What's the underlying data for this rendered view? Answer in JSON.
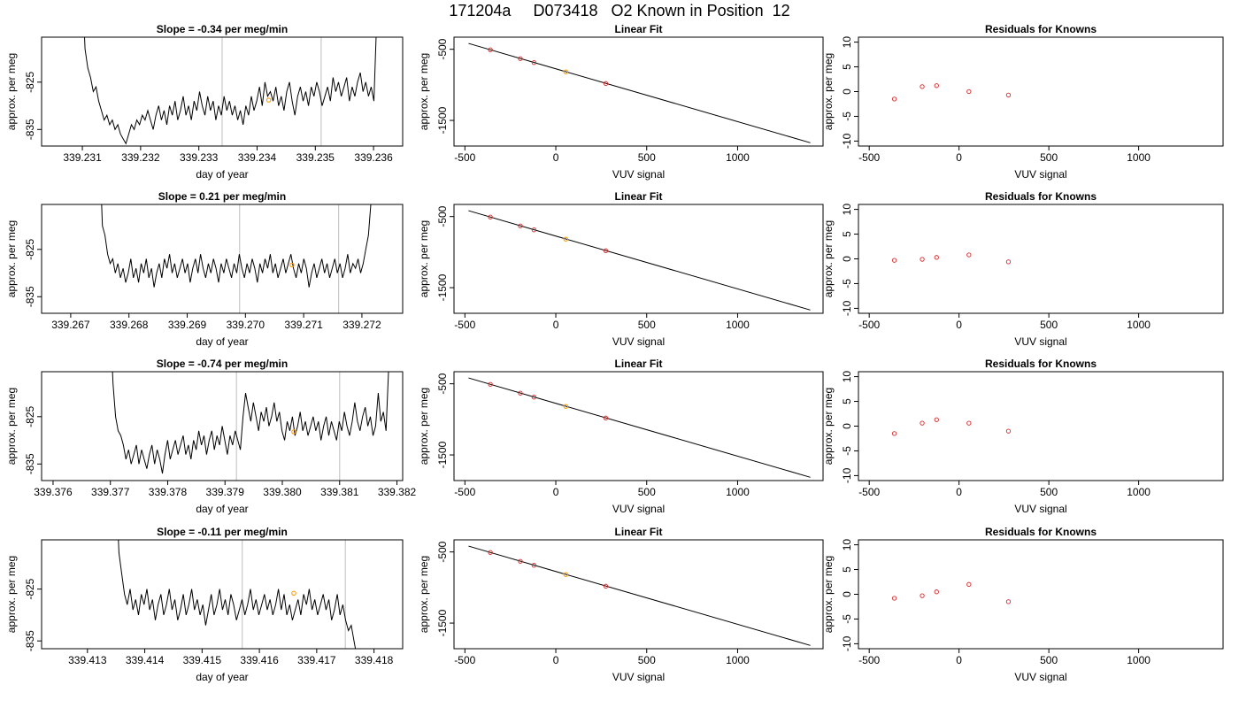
{
  "figure": {
    "title": "171204a     D073418   O2 Known in Position  12",
    "colors": {
      "trace": "#000000",
      "vline": "#c8c8c8",
      "known_point": "#d62728",
      "sample_point": "#ff9900"
    }
  },
  "chart_data": [
    {
      "type": "line",
      "row": 0,
      "panel": "time",
      "title": "Slope =  -0.34  per meg/min",
      "xlabel": "day of year",
      "ylabel": "approx. per meg",
      "xlim": [
        339.2303,
        339.2365
      ],
      "ylim": [
        -838.5,
        -815.5
      ],
      "xticks": [
        "339.231",
        "339.232",
        "339.233",
        "339.234",
        "339.235",
        "339.236"
      ],
      "xtick_values": [
        339.231,
        339.232,
        339.233,
        339.234,
        339.235,
        339.236
      ],
      "yticks": [
        "-825",
        "-835"
      ],
      "ytick_values": [
        -825,
        -835
      ],
      "vlines": [
        339.2334,
        339.2351
      ],
      "trace_x_start": 339.231,
      "trace_x_end": 339.2361,
      "trace_y": [
        -805,
        -818,
        -822,
        -824,
        -827,
        -826,
        -829,
        -831,
        -833,
        -832,
        -834,
        -833,
        -835,
        -834,
        -836,
        -837,
        -838,
        -836,
        -834,
        -835,
        -833,
        -834,
        -832,
        -833,
        -831,
        -833,
        -835,
        -832,
        -830,
        -833,
        -831,
        -834,
        -830,
        -832,
        -829,
        -833,
        -831,
        -828,
        -832,
        -830,
        -833,
        -829,
        -831,
        -827,
        -830,
        -832,
        -828,
        -831,
        -829,
        -833,
        -830,
        -832,
        -828,
        -831,
        -829,
        -832,
        -830,
        -833,
        -831,
        -834,
        -830,
        -832,
        -828,
        -831,
        -829,
        -826,
        -830,
        -825,
        -828,
        -827,
        -829,
        -826,
        -830,
        -828,
        -831,
        -827,
        -825,
        -829,
        -832,
        -828,
        -826,
        -829,
        -827,
        -830,
        -826,
        -828,
        -825,
        -827,
        -830,
        -828,
        -826,
        -829,
        -824,
        -827,
        -825,
        -828,
        -826,
        -824,
        -829,
        -826,
        -828,
        -825,
        -823,
        -827,
        -825,
        -828,
        -826,
        -829,
        -812,
        -805
      ],
      "sample_points": [
        {
          "x": 339.2342,
          "y": -828.8
        }
      ]
    },
    {
      "type": "scatter",
      "row": 0,
      "panel": "fit",
      "title": "Linear Fit",
      "xlabel": "VUV signal",
      "ylabel": "approx. per meg",
      "xlim": [
        -560,
        1470
      ],
      "ylim": [
        -1860,
        -330
      ],
      "xticks": [
        "-500",
        "0",
        "500",
        "1000"
      ],
      "xtick_values": [
        -500,
        0,
        500,
        1000
      ],
      "yticks": [
        "-500",
        "-1500"
      ],
      "ytick_values": [
        -500,
        -1500
      ],
      "fit_line": {
        "x": [
          -480,
          1400
        ],
        "y": [
          -418,
          -1814
        ]
      },
      "known_points": [
        {
          "x": -360,
          "y": -508
        },
        {
          "x": -195,
          "y": -632
        },
        {
          "x": -120,
          "y": -687
        },
        {
          "x": 275,
          "y": -981
        }
      ],
      "sample_points": [
        {
          "x": 55,
          "y": -818
        }
      ]
    },
    {
      "type": "scatter",
      "row": 0,
      "panel": "resid",
      "title": "Residuals for Knowns",
      "xlabel": "VUV signal",
      "ylabel": "approx. per meg",
      "xlim": [
        -560,
        1470
      ],
      "ylim": [
        -11,
        11
      ],
      "xticks": [
        "-500",
        "0",
        "500",
        "1000"
      ],
      "xtick_values": [
        -500,
        0,
        500,
        1000
      ],
      "yticks": [
        "-10",
        "-5",
        "0",
        "5",
        "10"
      ],
      "ytick_values": [
        -10,
        -5,
        0,
        5,
        10
      ],
      "known_points": [
        {
          "x": -360,
          "y": -1.5
        },
        {
          "x": -205,
          "y": 1.0
        },
        {
          "x": -125,
          "y": 1.2
        },
        {
          "x": 55,
          "y": 0.0
        },
        {
          "x": 275,
          "y": -0.7
        }
      ]
    },
    {
      "type": "line",
      "row": 1,
      "panel": "time",
      "title": "Slope =  0.21  per meg/min",
      "xlabel": "day of year",
      "ylabel": "approx. per meg",
      "xlim": [
        339.2665,
        339.2727
      ],
      "ylim": [
        -838.5,
        -815.5
      ],
      "xticks": [
        "339.267",
        "339.268",
        "339.269",
        "339.270",
        "339.271",
        "339.272"
      ],
      "xtick_values": [
        339.267,
        339.268,
        339.269,
        339.27,
        339.271,
        339.272
      ],
      "yticks": [
        "-825",
        "-835"
      ],
      "ytick_values": [
        -825,
        -835
      ],
      "vlines": [
        339.2699,
        339.2716
      ],
      "trace_x_start": 339.2675,
      "trace_x_end": 339.2722,
      "trace_y": [
        -805,
        -820,
        -822,
        -826,
        -828,
        -827,
        -830,
        -828,
        -831,
        -829,
        -832,
        -830,
        -827,
        -831,
        -829,
        -832,
        -828,
        -830,
        -827,
        -831,
        -829,
        -833,
        -830,
        -828,
        -831,
        -827,
        -829,
        -826,
        -830,
        -828,
        -831,
        -829,
        -827,
        -830,
        -828,
        -832,
        -829,
        -827,
        -830,
        -826,
        -829,
        -831,
        -828,
        -830,
        -827,
        -829,
        -832,
        -828,
        -830,
        -827,
        -829,
        -831,
        -828,
        -830,
        -826,
        -829,
        -831,
        -828,
        -830,
        -827,
        -829,
        -832,
        -828,
        -830,
        -827,
        -829,
        -826,
        -830,
        -828,
        -831,
        -829,
        -827,
        -830,
        -828,
        -826,
        -829,
        -831,
        -828,
        -830,
        -827,
        -829,
        -833,
        -830,
        -828,
        -831,
        -829,
        -827,
        -830,
        -828,
        -831,
        -829,
        -827,
        -830,
        -828,
        -831,
        -829,
        -826,
        -830,
        -828,
        -829,
        -827,
        -830,
        -828,
        -825,
        -822,
        -815,
        -805
      ],
      "sample_points": [
        {
          "x": 339.2708,
          "y": -828.3
        }
      ]
    },
    {
      "type": "scatter",
      "row": 1,
      "panel": "fit",
      "title": "Linear Fit",
      "xlabel": "VUV signal",
      "ylabel": "approx. per meg",
      "xlim": [
        -560,
        1470
      ],
      "ylim": [
        -1860,
        -330
      ],
      "xticks": [
        "-500",
        "0",
        "500",
        "1000"
      ],
      "xtick_values": [
        -500,
        0,
        500,
        1000
      ],
      "yticks": [
        "-500",
        "-1500"
      ],
      "ytick_values": [
        -500,
        -1500
      ],
      "fit_line": {
        "x": [
          -480,
          1400
        ],
        "y": [
          -418,
          -1814
        ]
      },
      "known_points": [
        {
          "x": -360,
          "y": -508
        },
        {
          "x": -195,
          "y": -632
        },
        {
          "x": -120,
          "y": -687
        },
        {
          "x": 275,
          "y": -981
        }
      ],
      "sample_points": [
        {
          "x": 55,
          "y": -818
        }
      ]
    },
    {
      "type": "scatter",
      "row": 1,
      "panel": "resid",
      "title": "Residuals for Knowns",
      "xlabel": "VUV signal",
      "ylabel": "approx. per meg",
      "xlim": [
        -560,
        1470
      ],
      "ylim": [
        -11,
        11
      ],
      "xticks": [
        "-500",
        "0",
        "500",
        "1000"
      ],
      "xtick_values": [
        -500,
        0,
        500,
        1000
      ],
      "yticks": [
        "-10",
        "-5",
        "0",
        "5",
        "10"
      ],
      "ytick_values": [
        -10,
        -5,
        0,
        5,
        10
      ],
      "known_points": [
        {
          "x": -360,
          "y": -0.3
        },
        {
          "x": -205,
          "y": -0.1
        },
        {
          "x": -125,
          "y": 0.3
        },
        {
          "x": 55,
          "y": 0.8
        },
        {
          "x": 275,
          "y": -0.6
        }
      ]
    },
    {
      "type": "line",
      "row": 2,
      "panel": "time",
      "title": "Slope =  -0.74  per meg/min",
      "xlabel": "day of year",
      "ylabel": "approx. per meg",
      "xlim": [
        339.3758,
        339.3821
      ],
      "ylim": [
        -838.5,
        -815.5
      ],
      "xticks": [
        "339.376",
        "339.377",
        "339.378",
        "339.379",
        "339.380",
        "339.381",
        "339.382"
      ],
      "xtick_values": [
        339.376,
        339.377,
        339.378,
        339.379,
        339.38,
        339.381,
        339.382
      ],
      "yticks": [
        "-825",
        "-835"
      ],
      "ytick_values": [
        -825,
        -835
      ],
      "vlines": [
        339.3792,
        339.381
      ],
      "trace_x_start": 339.377,
      "trace_x_end": 339.3819,
      "trace_y": [
        -805,
        -818,
        -825,
        -828,
        -829,
        -831,
        -834,
        -832,
        -835,
        -833,
        -831,
        -835,
        -832,
        -834,
        -836,
        -833,
        -831,
        -835,
        -832,
        -834,
        -837,
        -833,
        -830,
        -834,
        -832,
        -830,
        -833,
        -831,
        -829,
        -833,
        -831,
        -834,
        -830,
        -832,
        -828,
        -831,
        -829,
        -833,
        -830,
        -828,
        -832,
        -829,
        -831,
        -827,
        -830,
        -833,
        -829,
        -831,
        -828,
        -830,
        -832,
        -825,
        -820,
        -823,
        -826,
        -822,
        -825,
        -828,
        -824,
        -826,
        -823,
        -827,
        -825,
        -822,
        -826,
        -824,
        -828,
        -830,
        -826,
        -828,
        -825,
        -829,
        -827,
        -824,
        -828,
        -826,
        -829,
        -827,
        -825,
        -828,
        -826,
        -830,
        -827,
        -825,
        -829,
        -826,
        -828,
        -830,
        -826,
        -828,
        -824,
        -827,
        -829,
        -826,
        -822,
        -826,
        -828,
        -825,
        -823,
        -827,
        -825,
        -829,
        -827,
        -820,
        -826,
        -824,
        -828,
        -815,
        -805
      ],
      "sample_points": [
        {
          "x": 339.3802,
          "y": -828.2
        }
      ]
    },
    {
      "type": "scatter",
      "row": 2,
      "panel": "fit",
      "title": "Linear Fit",
      "xlabel": "VUV signal",
      "ylabel": "approx. per meg",
      "xlim": [
        -560,
        1470
      ],
      "ylim": [
        -1860,
        -330
      ],
      "xticks": [
        "-500",
        "0",
        "500",
        "1000"
      ],
      "xtick_values": [
        -500,
        0,
        500,
        1000
      ],
      "yticks": [
        "-500",
        "-1500"
      ],
      "ytick_values": [
        -500,
        -1500
      ],
      "fit_line": {
        "x": [
          -480,
          1400
        ],
        "y": [
          -418,
          -1814
        ]
      },
      "known_points": [
        {
          "x": -360,
          "y": -508
        },
        {
          "x": -195,
          "y": -632
        },
        {
          "x": -120,
          "y": -687
        },
        {
          "x": 275,
          "y": -981
        }
      ],
      "sample_points": [
        {
          "x": 55,
          "y": -818
        }
      ]
    },
    {
      "type": "scatter",
      "row": 2,
      "panel": "resid",
      "title": "Residuals for Knowns",
      "xlabel": "VUV signal",
      "ylabel": "approx. per meg",
      "xlim": [
        -560,
        1470
      ],
      "ylim": [
        -11,
        11
      ],
      "xticks": [
        "-500",
        "0",
        "500",
        "1000"
      ],
      "xtick_values": [
        -500,
        0,
        500,
        1000
      ],
      "yticks": [
        "-10",
        "-5",
        "0",
        "5",
        "10"
      ],
      "ytick_values": [
        -10,
        -5,
        0,
        5,
        10
      ],
      "known_points": [
        {
          "x": -360,
          "y": -1.5
        },
        {
          "x": -205,
          "y": 0.6
        },
        {
          "x": -125,
          "y": 1.3
        },
        {
          "x": 55,
          "y": 0.6
        },
        {
          "x": 275,
          "y": -1.0
        }
      ]
    },
    {
      "type": "line",
      "row": 3,
      "panel": "time",
      "title": "Slope =  -0.11  per meg/min",
      "xlabel": "day of year",
      "ylabel": "approx. per meg",
      "xlim": [
        339.4122,
        339.4185
      ],
      "ylim": [
        -836.5,
        -815.5
      ],
      "xticks": [
        "339.413",
        "339.414",
        "339.415",
        "339.416",
        "339.417",
        "339.418"
      ],
      "xtick_values": [
        339.413,
        339.414,
        339.415,
        339.416,
        339.417,
        339.418
      ],
      "yticks": [
        "-825",
        "-835"
      ],
      "ytick_values": [
        -825,
        -835
      ],
      "vlines": [
        339.4157,
        339.4175
      ],
      "trace_x_start": 339.4135,
      "trace_x_end": 339.4177,
      "trace_y": [
        -805,
        -818,
        -822,
        -826,
        -828,
        -825,
        -829,
        -827,
        -830,
        -826,
        -828,
        -825,
        -829,
        -827,
        -831,
        -828,
        -826,
        -830,
        -828,
        -825,
        -829,
        -827,
        -831,
        -829,
        -826,
        -830,
        -828,
        -825,
        -829,
        -827,
        -830,
        -828,
        -832,
        -829,
        -826,
        -830,
        -828,
        -825,
        -829,
        -827,
        -830,
        -826,
        -828,
        -831,
        -829,
        -827,
        -830,
        -828,
        -825,
        -829,
        -827,
        -830,
        -828,
        -826,
        -829,
        -827,
        -830,
        -828,
        -825,
        -829,
        -826,
        -830,
        -828,
        -831,
        -829,
        -827,
        -830,
        -826,
        -828,
        -825,
        -829,
        -827,
        -830,
        -828,
        -826,
        -829,
        -827,
        -831,
        -829,
        -826,
        -830,
        -828,
        -831,
        -833,
        -832,
        -835,
        -838
      ],
      "sample_points": [
        {
          "x": 339.4166,
          "y": -825.8
        }
      ]
    },
    {
      "type": "scatter",
      "row": 3,
      "panel": "fit",
      "title": "Linear Fit",
      "xlabel": "VUV signal",
      "ylabel": "approx. per meg",
      "xlim": [
        -560,
        1470
      ],
      "ylim": [
        -1860,
        -330
      ],
      "xticks": [
        "-500",
        "0",
        "500",
        "1000"
      ],
      "xtick_values": [
        -500,
        0,
        500,
        1000
      ],
      "yticks": [
        "-500",
        "-1500"
      ],
      "ytick_values": [
        -500,
        -1500
      ],
      "fit_line": {
        "x": [
          -480,
          1400
        ],
        "y": [
          -418,
          -1814
        ]
      },
      "known_points": [
        {
          "x": -360,
          "y": -508
        },
        {
          "x": -195,
          "y": -632
        },
        {
          "x": -120,
          "y": -687
        },
        {
          "x": 275,
          "y": -981
        }
      ],
      "sample_points": [
        {
          "x": 55,
          "y": -818
        }
      ]
    },
    {
      "type": "scatter",
      "row": 3,
      "panel": "resid",
      "title": "Residuals for Knowns",
      "xlabel": "VUV signal",
      "ylabel": "approx. per meg",
      "xlim": [
        -560,
        1470
      ],
      "ylim": [
        -11,
        11
      ],
      "xticks": [
        "-500",
        "0",
        "500",
        "1000"
      ],
      "xtick_values": [
        -500,
        0,
        500,
        1000
      ],
      "yticks": [
        "-10",
        "-5",
        "0",
        "5",
        "10"
      ],
      "ytick_values": [
        -10,
        -5,
        0,
        5,
        10
      ],
      "known_points": [
        {
          "x": -360,
          "y": -0.8
        },
        {
          "x": -205,
          "y": -0.3
        },
        {
          "x": -125,
          "y": 0.5
        },
        {
          "x": 55,
          "y": 2.0
        },
        {
          "x": 275,
          "y": -1.5
        }
      ]
    }
  ]
}
